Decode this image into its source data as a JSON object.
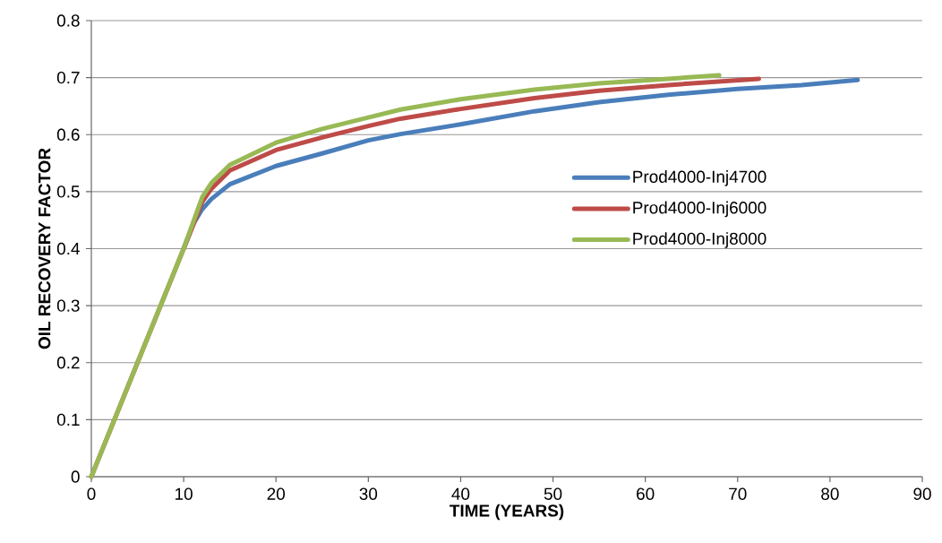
{
  "chart_data": {
    "type": "line",
    "xlabel": "TIME (YEARS)",
    "ylabel": "OIL RECOVERY FACTOR",
    "xlim": [
      0,
      90
    ],
    "ylim": [
      0,
      0.8
    ],
    "xticks": [
      0,
      10,
      20,
      30,
      40,
      50,
      60,
      70,
      80,
      90
    ],
    "yticks": [
      0,
      0.1,
      0.2,
      0.3,
      0.4,
      0.5,
      0.6,
      0.7,
      0.8
    ],
    "grid": "y",
    "legend": "right",
    "marker": "none",
    "line_style": "solid",
    "series": [
      {
        "name": "Prod4000-Inj4700",
        "color": "#4a7ebb",
        "x": [
          10,
          11,
          12,
          13,
          15,
          20,
          25,
          30,
          33.5,
          40,
          48,
          55,
          62.5,
          70,
          76.9,
          83
        ],
        "values": [
          0.4,
          0.442,
          0.469,
          0.487,
          0.513,
          0.545,
          0.567,
          0.59,
          0.601,
          0.618,
          0.641,
          0.657,
          0.67,
          0.68,
          0.687,
          0.696
        ]
      },
      {
        "name": "Prod4000-Inj6000",
        "color": "#be4b48",
        "x": [
          0,
          5,
          10,
          11,
          12,
          13,
          15,
          20,
          25,
          30,
          33.5,
          40,
          48,
          55,
          62.5,
          72.3
        ],
        "values": [
          0,
          0.2,
          0.4,
          0.44,
          0.482,
          0.505,
          0.537,
          0.573,
          0.595,
          0.615,
          0.628,
          0.645,
          0.664,
          0.677,
          0.687,
          0.698
        ]
      },
      {
        "name": "Prod4000-Inj8000",
        "color": "#98b954",
        "x": [
          0,
          5,
          10,
          11,
          12,
          13,
          15,
          20,
          25,
          30,
          33.5,
          40,
          48,
          55,
          62.5,
          68
        ],
        "values": [
          0,
          0.2,
          0.4,
          0.445,
          0.49,
          0.515,
          0.547,
          0.586,
          0.61,
          0.63,
          0.644,
          0.662,
          0.679,
          0.69,
          0.698,
          0.704
        ]
      }
    ]
  }
}
